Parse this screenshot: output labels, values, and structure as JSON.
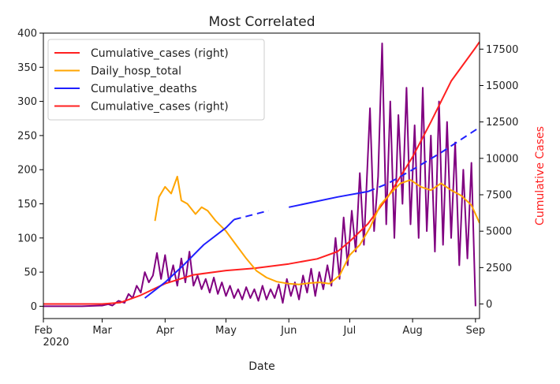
{
  "chart_data": {
    "type": "line",
    "title": "Most Correlated",
    "xlabel": "Date",
    "ylabel_left": "",
    "ylabel_right": "Cumulative Cases",
    "ylim_left": [
      -18,
      400
    ],
    "ylim_right": [
      -1000,
      18600
    ],
    "xlim": [
      "2020-02-01",
      "2020-09-03"
    ],
    "grid": false,
    "legend_position": "upper-left",
    "x_ticks": [
      {
        "date": "2020-02-01",
        "label": "Feb",
        "sublabel": "2020"
      },
      {
        "date": "2020-03-01",
        "label": "Mar",
        "sublabel": ""
      },
      {
        "date": "2020-04-01",
        "label": "Apr",
        "sublabel": ""
      },
      {
        "date": "2020-05-01",
        "label": "May",
        "sublabel": ""
      },
      {
        "date": "2020-06-01",
        "label": "Jun",
        "sublabel": ""
      },
      {
        "date": "2020-07-01",
        "label": "Jul",
        "sublabel": ""
      },
      {
        "date": "2020-08-01",
        "label": "Aug",
        "sublabel": ""
      },
      {
        "date": "2020-09-01",
        "label": "Sep",
        "sublabel": ""
      }
    ],
    "y_ticks_left": [
      0,
      50,
      100,
      150,
      200,
      250,
      300,
      350,
      400
    ],
    "y_ticks_right": [
      0,
      2500,
      5000,
      7500,
      10000,
      12500,
      15000,
      17500
    ],
    "legend": [
      {
        "label": "Cumulative_cases (right)",
        "color": "#ff2020"
      },
      {
        "label": "Daily_hosp_total",
        "color": "#ffa500"
      },
      {
        "label": "Cumulative_deaths",
        "color": "#1f1fff"
      },
      {
        "label": "Cumulative_cases (right)",
        "color": "#ff2020"
      }
    ],
    "series": [
      {
        "name": "Daily (purple)",
        "axis": "left",
        "color": "#800080",
        "points": [
          [
            "2020-02-01",
            0
          ],
          [
            "2020-02-20",
            0
          ],
          [
            "2020-03-01",
            1
          ],
          [
            "2020-03-04",
            3
          ],
          [
            "2020-03-06",
            1
          ],
          [
            "2020-03-09",
            8
          ],
          [
            "2020-03-12",
            5
          ],
          [
            "2020-03-14",
            18
          ],
          [
            "2020-03-16",
            12
          ],
          [
            "2020-03-18",
            30
          ],
          [
            "2020-03-20",
            20
          ],
          [
            "2020-03-22",
            50
          ],
          [
            "2020-03-24",
            35
          ],
          [
            "2020-03-26",
            45
          ],
          [
            "2020-03-28",
            78
          ],
          [
            "2020-03-30",
            40
          ],
          [
            "2020-04-01",
            75
          ],
          [
            "2020-04-03",
            35
          ],
          [
            "2020-04-05",
            60
          ],
          [
            "2020-04-07",
            30
          ],
          [
            "2020-04-09",
            70
          ],
          [
            "2020-04-11",
            35
          ],
          [
            "2020-04-13",
            80
          ],
          [
            "2020-04-15",
            30
          ],
          [
            "2020-04-17",
            45
          ],
          [
            "2020-04-19",
            25
          ],
          [
            "2020-04-21",
            40
          ],
          [
            "2020-04-23",
            20
          ],
          [
            "2020-04-25",
            42
          ],
          [
            "2020-04-27",
            18
          ],
          [
            "2020-04-29",
            35
          ],
          [
            "2020-05-01",
            15
          ],
          [
            "2020-05-03",
            30
          ],
          [
            "2020-05-05",
            12
          ],
          [
            "2020-05-07",
            25
          ],
          [
            "2020-05-09",
            10
          ],
          [
            "2020-05-11",
            28
          ],
          [
            "2020-05-13",
            12
          ],
          [
            "2020-05-15",
            25
          ],
          [
            "2020-05-17",
            8
          ],
          [
            "2020-05-19",
            30
          ],
          [
            "2020-05-21",
            10
          ],
          [
            "2020-05-23",
            25
          ],
          [
            "2020-05-25",
            12
          ],
          [
            "2020-05-27",
            32
          ],
          [
            "2020-05-29",
            5
          ],
          [
            "2020-05-31",
            40
          ],
          [
            "2020-06-02",
            15
          ],
          [
            "2020-06-04",
            35
          ],
          [
            "2020-06-06",
            10
          ],
          [
            "2020-06-08",
            45
          ],
          [
            "2020-06-10",
            20
          ],
          [
            "2020-06-12",
            55
          ],
          [
            "2020-06-14",
            15
          ],
          [
            "2020-06-16",
            50
          ],
          [
            "2020-06-18",
            25
          ],
          [
            "2020-06-20",
            60
          ],
          [
            "2020-06-22",
            30
          ],
          [
            "2020-06-24",
            100
          ],
          [
            "2020-06-26",
            40
          ],
          [
            "2020-06-28",
            130
          ],
          [
            "2020-06-30",
            60
          ],
          [
            "2020-07-02",
            140
          ],
          [
            "2020-07-04",
            80
          ],
          [
            "2020-07-06",
            195
          ],
          [
            "2020-07-08",
            90
          ],
          [
            "2020-07-11",
            290
          ],
          [
            "2020-07-13",
            110
          ],
          [
            "2020-07-15",
            190
          ],
          [
            "2020-07-17",
            385
          ],
          [
            "2020-07-19",
            120
          ],
          [
            "2020-07-21",
            300
          ],
          [
            "2020-07-23",
            100
          ],
          [
            "2020-07-25",
            280
          ],
          [
            "2020-07-27",
            150
          ],
          [
            "2020-07-29",
            320
          ],
          [
            "2020-07-31",
            120
          ],
          [
            "2020-08-02",
            265
          ],
          [
            "2020-08-04",
            100
          ],
          [
            "2020-08-06",
            320
          ],
          [
            "2020-08-08",
            110
          ],
          [
            "2020-08-10",
            250
          ],
          [
            "2020-08-12",
            80
          ],
          [
            "2020-08-14",
            300
          ],
          [
            "2020-08-16",
            90
          ],
          [
            "2020-08-18",
            270
          ],
          [
            "2020-08-20",
            100
          ],
          [
            "2020-08-22",
            240
          ],
          [
            "2020-08-24",
            60
          ],
          [
            "2020-08-26",
            200
          ],
          [
            "2020-08-28",
            70
          ],
          [
            "2020-08-30",
            210
          ],
          [
            "2020-09-01",
            0
          ]
        ]
      },
      {
        "name": "Cumulative_cases",
        "axis": "right",
        "color": "#ff2020",
        "points": [
          [
            "2020-02-01",
            0
          ],
          [
            "2020-03-01",
            0
          ],
          [
            "2020-03-10",
            100
          ],
          [
            "2020-03-20",
            600
          ],
          [
            "2020-04-01",
            1400
          ],
          [
            "2020-04-15",
            2000
          ],
          [
            "2020-05-01",
            2300
          ],
          [
            "2020-05-15",
            2450
          ],
          [
            "2020-06-01",
            2750
          ],
          [
            "2020-06-15",
            3100
          ],
          [
            "2020-06-25",
            3600
          ],
          [
            "2020-07-01",
            4300
          ],
          [
            "2020-07-10",
            5500
          ],
          [
            "2020-07-20",
            7400
          ],
          [
            "2020-08-01",
            10100
          ],
          [
            "2020-08-10",
            12500
          ],
          [
            "2020-08-20",
            15300
          ],
          [
            "2020-09-01",
            17600
          ],
          [
            "2020-09-03",
            18000
          ]
        ]
      },
      {
        "name": "Daily_hosp_total",
        "axis": "left",
        "color": "#ffa500",
        "points": [
          [
            "2020-03-27",
            125
          ],
          [
            "2020-03-29",
            160
          ],
          [
            "2020-04-01",
            175
          ],
          [
            "2020-04-04",
            165
          ],
          [
            "2020-04-07",
            190
          ],
          [
            "2020-04-09",
            155
          ],
          [
            "2020-04-12",
            150
          ],
          [
            "2020-04-16",
            135
          ],
          [
            "2020-04-19",
            145
          ],
          [
            "2020-04-22",
            140
          ],
          [
            "2020-04-26",
            125
          ],
          [
            "2020-05-01",
            110
          ],
          [
            "2020-05-06",
            90
          ],
          [
            "2020-05-11",
            70
          ],
          [
            "2020-05-16",
            52
          ],
          [
            "2020-05-21",
            42
          ],
          [
            "2020-05-26",
            36
          ],
          [
            "2020-06-01",
            33
          ],
          [
            "2020-06-06",
            32
          ],
          [
            "2020-06-11",
            34
          ],
          [
            "2020-06-16",
            35
          ],
          [
            "2020-06-21",
            33
          ],
          [
            "2020-06-26",
            45
          ],
          [
            "2020-07-01",
            75
          ],
          [
            "2020-07-06",
            90
          ],
          [
            "2020-07-11",
            115
          ],
          [
            "2020-07-16",
            148
          ],
          [
            "2020-07-21",
            165
          ],
          [
            "2020-07-26",
            180
          ],
          [
            "2020-07-31",
            185
          ],
          [
            "2020-08-05",
            175
          ],
          [
            "2020-08-10",
            170
          ],
          [
            "2020-08-15",
            180
          ],
          [
            "2020-08-20",
            170
          ],
          [
            "2020-08-25",
            162
          ],
          [
            "2020-08-30",
            148
          ],
          [
            "2020-09-03",
            122
          ]
        ]
      },
      {
        "name": "Cumulative_deaths",
        "axis": "left",
        "color": "#1f1fff",
        "segments": [
          [
            [
              "2020-03-22",
              12
            ],
            [
              "2020-04-01",
              35
            ],
            [
              "2020-04-10",
              60
            ],
            [
              "2020-04-20",
              90
            ],
            [
              "2020-05-01",
              115
            ],
            [
              "2020-05-05",
              127
            ]
          ],
          [
            [
              "2020-05-05",
              127
            ],
            [
              "2020-05-22",
              140
            ]
          ],
          [
            [
              "2020-06-01",
              145
            ],
            [
              "2020-06-25",
              160
            ],
            [
              "2020-07-10",
              168
            ]
          ],
          [
            [
              "2020-07-10",
              168
            ],
            [
              "2020-07-20",
              180
            ],
            [
              "2020-08-01",
              200
            ],
            [
              "2020-08-15",
              225
            ],
            [
              "2020-09-03",
              262
            ]
          ]
        ]
      }
    ]
  }
}
